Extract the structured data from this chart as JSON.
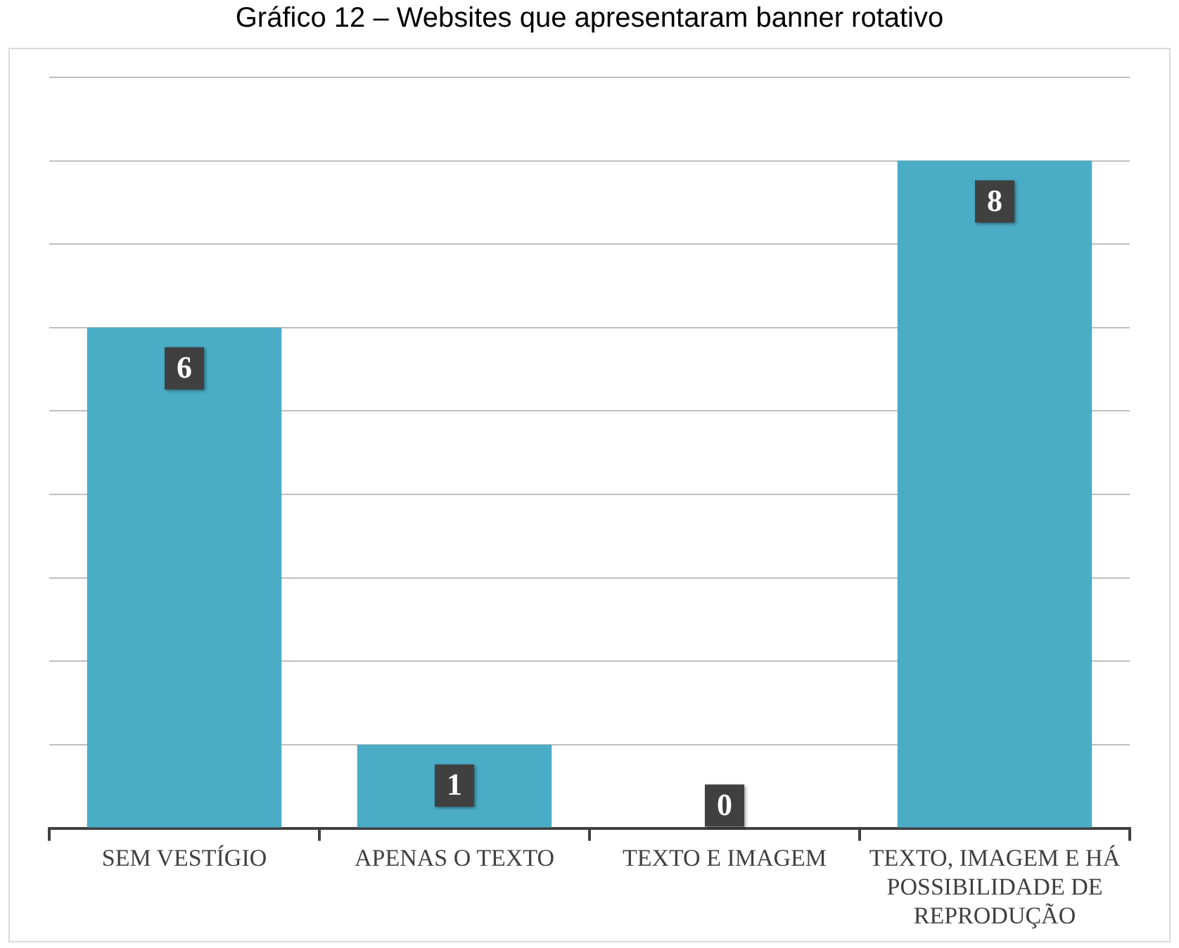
{
  "chart_data": {
    "type": "bar",
    "title": "Gráfico 12 – Websites que apresentaram banner rotativo",
    "categories": [
      "SEM VESTÍGIO",
      "APENAS O TEXTO",
      "TEXTO E IMAGEM",
      "TEXTO, IMAGEM E HÁ POSSIBILIDADE DE REPRODUÇÃO"
    ],
    "values": [
      6,
      1,
      0,
      8
    ],
    "color": "#4bacc6",
    "ylim": [
      0,
      9
    ],
    "yticks": [
      0,
      1,
      2,
      3,
      4,
      5,
      6,
      7,
      8,
      9
    ],
    "grid": "y",
    "tick_labels": "x",
    "data_labels": true,
    "legend": false
  }
}
